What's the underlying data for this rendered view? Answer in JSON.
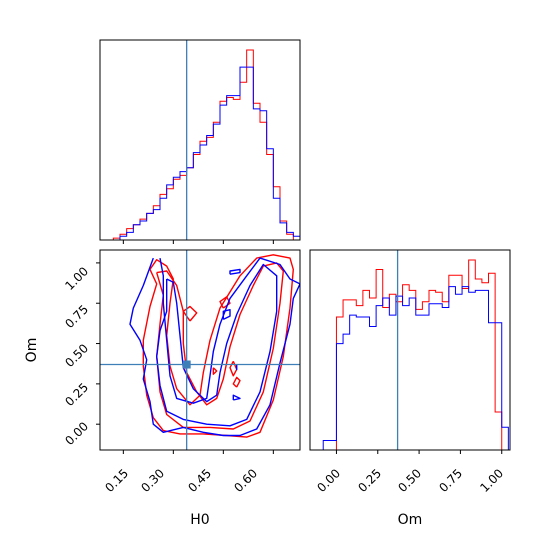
{
  "chart_data": {
    "type": "corner",
    "parameters": [
      "H0",
      "Om"
    ],
    "truth": {
      "H0": 0.34,
      "Om": 0.37
    },
    "colors": {
      "red": "#ff0000",
      "blue": "#0000ff",
      "truth": "#3f7fb7"
    },
    "panels": [
      {
        "id": "H0-marginal",
        "type": "histogram",
        "x_param": "H0",
        "xlim": [
          0.08,
          0.68
        ],
        "bin_edges": [
          0.08,
          0.1,
          0.12,
          0.14,
          0.16,
          0.18,
          0.2,
          0.22,
          0.24,
          0.26,
          0.28,
          0.3,
          0.32,
          0.34,
          0.36,
          0.38,
          0.4,
          0.42,
          0.44,
          0.46,
          0.48,
          0.5,
          0.52,
          0.54,
          0.56,
          0.58,
          0.6,
          0.62,
          0.64,
          0.66,
          0.68
        ],
        "series": [
          {
            "color": "red",
            "values": [
              0,
              0,
              0.01,
              0.03,
              0.06,
              0.08,
              0.11,
              0.14,
              0.18,
              0.24,
              0.27,
              0.32,
              0.34,
              0.38,
              0.45,
              0.52,
              0.54,
              0.62,
              0.73,
              0.75,
              0.74,
              0.83,
              1.0,
              0.72,
              0.62,
              0.45,
              0.28,
              0.1,
              0.03,
              0
            ]
          },
          {
            "color": "blue",
            "values": [
              0,
              0,
              0,
              0.02,
              0.04,
              0.08,
              0.1,
              0.14,
              0.16,
              0.22,
              0.29,
              0.33,
              0.36,
              0.38,
              0.46,
              0.5,
              0.55,
              0.61,
              0.71,
              0.76,
              0.76,
              0.91,
              0.91,
              0.69,
              0.68,
              0.48,
              0.22,
              0.09,
              0.04,
              0.02
            ]
          }
        ]
      },
      {
        "id": "H0-Om-contour",
        "type": "contour",
        "x_param": "H0",
        "y_param": "Om",
        "xlim": [
          0.08,
          0.68
        ],
        "ylim": [
          -0.16,
          1.08
        ],
        "xticks": [
          "0.15",
          "0.30",
          "0.45",
          "0.60"
        ],
        "yticks": [
          "0.00",
          "0.25",
          "0.50",
          "0.75",
          "1.00"
        ],
        "xlabel": "H0",
        "ylabel": "Om",
        "series": [
          {
            "color": "red",
            "contours": [
              [
                [
                  0.23,
                  0.96
                ],
                [
                  0.25,
                  0.87
                ],
                [
                  0.23,
                  0.73
                ],
                [
                  0.21,
                  0.52
                ],
                [
                  0.21,
                  0.36
                ],
                [
                  0.22,
                  0.18
                ],
                [
                  0.24,
                  0.04
                ],
                [
                  0.27,
                  -0.04
                ],
                [
                  0.32,
                  -0.06
                ],
                [
                  0.39,
                  -0.06
                ],
                [
                  0.46,
                  -0.07
                ],
                [
                  0.52,
                  -0.08
                ],
                [
                  0.56,
                  -0.05
                ],
                [
                  0.6,
                  0.15
                ],
                [
                  0.63,
                  0.42
                ],
                [
                  0.65,
                  0.72
                ],
                [
                  0.66,
                  0.96
                ],
                [
                  0.65,
                  1.03
                ],
                [
                  0.6,
                  1.05
                ],
                [
                  0.55,
                  1.03
                ],
                [
                  0.5,
                  0.92
                ],
                [
                  0.44,
                  0.72
                ],
                [
                  0.41,
                  0.52
                ],
                [
                  0.39,
                  0.32
                ],
                [
                  0.38,
                  0.18
                ],
                [
                  0.35,
                  0.12
                ],
                [
                  0.31,
                  0.22
                ],
                [
                  0.29,
                  0.36
                ],
                [
                  0.28,
                  0.55
                ],
                [
                  0.29,
                  0.75
                ],
                [
                  0.3,
                  0.9
                ],
                [
                  0.28,
                  0.98
                ],
                [
                  0.25,
                  1.02
                ],
                [
                  0.23,
                  0.96
                ]
              ],
              [
                [
                  0.25,
                  0.94
                ],
                [
                  0.27,
                  0.8
                ],
                [
                  0.26,
                  0.62
                ],
                [
                  0.25,
                  0.42
                ],
                [
                  0.26,
                  0.2
                ],
                [
                  0.28,
                  0.06
                ],
                [
                  0.33,
                  -0.02
                ],
                [
                  0.41,
                  -0.02
                ],
                [
                  0.48,
                  -0.03
                ],
                [
                  0.53,
                  0.02
                ],
                [
                  0.57,
                  0.2
                ],
                [
                  0.6,
                  0.47
                ],
                [
                  0.62,
                  0.75
                ],
                [
                  0.63,
                  0.95
                ],
                [
                  0.61,
                  1.0
                ],
                [
                  0.57,
                  0.98
                ],
                [
                  0.54,
                  0.86
                ],
                [
                  0.5,
                  0.68
                ],
                [
                  0.47,
                  0.48
                ],
                [
                  0.45,
                  0.28
                ],
                [
                  0.43,
                  0.16
                ],
                [
                  0.4,
                  0.12
                ],
                [
                  0.37,
                  0.2
                ],
                [
                  0.34,
                  0.32
                ],
                [
                  0.33,
                  0.5
                ],
                [
                  0.33,
                  0.7
                ],
                [
                  0.31,
                  0.86
                ],
                [
                  0.28,
                  0.95
                ],
                [
                  0.25,
                  0.94
                ]
              ],
              [
                [
                  0.35,
                  0.64
                ],
                [
                  0.37,
                  0.69
                ],
                [
                  0.35,
                  0.73
                ],
                [
                  0.33,
                  0.7
                ],
                [
                  0.35,
                  0.64
                ]
              ],
              [
                [
                  0.45,
                  0.72
                ],
                [
                  0.47,
                  0.75
                ],
                [
                  0.46,
                  0.79
                ],
                [
                  0.44,
                  0.76
                ],
                [
                  0.45,
                  0.72
                ]
              ],
              [
                [
                  0.48,
                  0.39
                ],
                [
                  0.49,
                  0.34
                ],
                [
                  0.48,
                  0.3
                ],
                [
                  0.47,
                  0.35
                ],
                [
                  0.48,
                  0.39
                ]
              ],
              [
                [
                  0.49,
                  0.23
                ],
                [
                  0.5,
                  0.27
                ],
                [
                  0.49,
                  0.29
                ],
                [
                  0.48,
                  0.25
                ],
                [
                  0.49,
                  0.23
                ]
              ],
              [
                [
                  0.42,
                  0.35
                ],
                [
                  0.43,
                  0.33
                ],
                [
                  0.42,
                  0.31
                ],
                [
                  0.42,
                  0.35
                ]
              ]
            ]
          },
          {
            "color": "blue",
            "contours": [
              [
                [
                  0.24,
                  1.03
                ],
                [
                  0.21,
                  0.86
                ],
                [
                  0.18,
                  0.72
                ],
                [
                  0.17,
                  0.62
                ],
                [
                  0.2,
                  0.52
                ],
                [
                  0.22,
                  0.4
                ],
                [
                  0.21,
                  0.28
                ],
                [
                  0.23,
                  0.14
                ],
                [
                  0.24,
                  0.0
                ],
                [
                  0.27,
                  -0.05
                ],
                [
                  0.33,
                  -0.02
                ],
                [
                  0.39,
                  -0.05
                ],
                [
                  0.45,
                  -0.07
                ],
                [
                  0.5,
                  -0.07
                ],
                [
                  0.55,
                  -0.03
                ],
                [
                  0.59,
                  0.12
                ],
                [
                  0.62,
                  0.38
                ],
                [
                  0.65,
                  0.62
                ],
                [
                  0.66,
                  0.78
                ],
                [
                  0.68,
                  0.87
                ],
                [
                  0.65,
                  0.9
                ],
                [
                  0.62,
                  0.99
                ],
                [
                  0.56,
                  1.03
                ],
                [
                  0.52,
                  0.92
                ],
                [
                  0.47,
                  0.78
                ],
                [
                  0.44,
                  0.62
                ],
                [
                  0.42,
                  0.45
                ],
                [
                  0.41,
                  0.3
                ],
                [
                  0.4,
                  0.16
                ],
                [
                  0.36,
                  0.13
                ],
                [
                  0.31,
                  0.16
                ],
                [
                  0.29,
                  0.3
                ],
                [
                  0.28,
                  0.52
                ],
                [
                  0.27,
                  0.75
                ],
                [
                  0.27,
                  0.92
                ],
                [
                  0.26,
                  1.03
                ]
              ],
              [
                [
                  0.28,
                  0.9
                ],
                [
                  0.28,
                  0.7
                ],
                [
                  0.26,
                  0.58
                ],
                [
                  0.25,
                  0.42
                ],
                [
                  0.26,
                  0.24
                ],
                [
                  0.28,
                  0.08
                ],
                [
                  0.33,
                  0.03
                ],
                [
                  0.4,
                  0.0
                ],
                [
                  0.47,
                  -0.01
                ],
                [
                  0.52,
                  0.03
                ],
                [
                  0.56,
                  0.2
                ],
                [
                  0.59,
                  0.45
                ],
                [
                  0.61,
                  0.7
                ],
                [
                  0.61,
                  0.92
                ],
                [
                  0.57,
                  0.99
                ],
                [
                  0.53,
                  0.86
                ],
                [
                  0.49,
                  0.68
                ],
                [
                  0.46,
                  0.5
                ],
                [
                  0.44,
                  0.32
                ],
                [
                  0.43,
                  0.18
                ],
                [
                  0.4,
                  0.14
                ],
                [
                  0.36,
                  0.22
                ],
                [
                  0.33,
                  0.35
                ],
                [
                  0.32,
                  0.55
                ],
                [
                  0.31,
                  0.75
                ],
                [
                  0.3,
                  0.88
                ],
                [
                  0.28,
                  0.9
                ]
              ],
              [
                [
                  0.45,
                  0.65
                ],
                [
                  0.47,
                  0.67
                ],
                [
                  0.47,
                  0.71
                ],
                [
                  0.45,
                  0.7
                ],
                [
                  0.45,
                  0.65
                ]
              ],
              [
                [
                  0.47,
                  0.93
                ],
                [
                  0.5,
                  0.94
                ],
                [
                  0.5,
                  0.96
                ],
                [
                  0.47,
                  0.95
                ],
                [
                  0.47,
                  0.93
                ]
              ],
              [
                [
                  0.49,
                  0.37
                ],
                [
                  0.49,
                  0.34
                ],
                [
                  0.49,
                  0.37
                ]
              ],
              [
                [
                  0.48,
                  0.15
                ],
                [
                  0.5,
                  0.16
                ],
                [
                  0.48,
                  0.18
                ],
                [
                  0.48,
                  0.15
                ]
              ]
            ]
          }
        ]
      },
      {
        "id": "Om-marginal",
        "type": "histogram",
        "x_param": "Om",
        "xlim": [
          -0.16,
          1.05
        ],
        "xticks": [
          "0.00",
          "0.25",
          "0.50",
          "0.75",
          "1.00"
        ],
        "xlabel": "Om",
        "bin_edges": [
          -0.16,
          -0.12,
          -0.08,
          -0.04,
          0.0,
          0.04,
          0.08,
          0.12,
          0.16,
          0.2,
          0.24,
          0.28,
          0.32,
          0.36,
          0.4,
          0.44,
          0.48,
          0.52,
          0.56,
          0.6,
          0.64,
          0.68,
          0.72,
          0.76,
          0.8,
          0.84,
          0.88,
          0.92,
          0.96,
          1.0,
          1.04
        ],
        "series": [
          {
            "color": "red",
            "values": [
              0,
              0,
              0,
              0,
              0.7,
              0.79,
              0.79,
              0.76,
              0.84,
              0.8,
              0.95,
              0.75,
              0.82,
              0.78,
              0.87,
              0.84,
              0.74,
              0.78,
              0.84,
              0.83,
              0.78,
              0.92,
              0.92,
              0.85,
              1.0,
              0.9,
              0.88,
              0.93,
              0.2,
              0
            ]
          },
          {
            "color": "blue",
            "values": [
              0,
              0,
              0.05,
              0.05,
              0.56,
              0.61,
              0.71,
              0.7,
              0.7,
              0.65,
              0.76,
              0.8,
              0.71,
              0.81,
              0.76,
              0.8,
              0.71,
              0.71,
              0.77,
              0.77,
              0.75,
              0.86,
              0.82,
              0.86,
              0.83,
              0.84,
              0.84,
              0.67,
              0.67,
              0.12
            ]
          }
        ]
      }
    ]
  }
}
